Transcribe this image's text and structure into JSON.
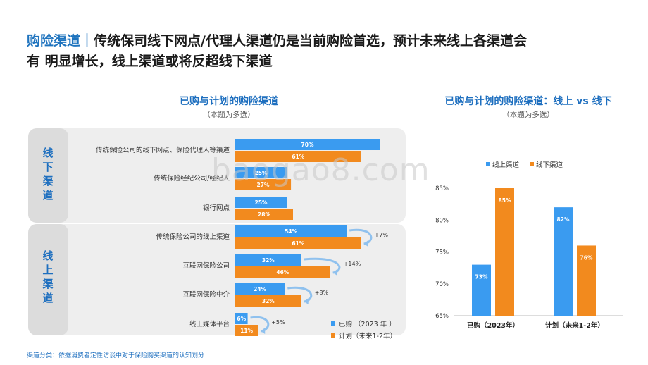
{
  "headline": {
    "keyword": "购险渠道",
    "separator": "｜",
    "line1_rest": "传统保司线下网点/代理人渠道仍是当前购险首选，预计未来线上各渠道会",
    "line2": "有 明显增长，线上渠道或将反超线下渠道"
  },
  "colors": {
    "blue": "#3a9bf0",
    "orange": "#f28a1e",
    "group_label": "#1e6fbf"
  },
  "watermark": "baogao8.com",
  "footnote": "渠道分类：依据消费者定性访谈中对于保险购买渠道的认知划分",
  "chart_data": [
    {
      "type": "bar",
      "orientation": "horizontal",
      "title": "已购与计划的购险渠道",
      "subtitle": "（本题为多选）",
      "groups": [
        {
          "label": "线\n下\n渠\n道",
          "chars": [
            "线",
            "下",
            "渠",
            "道"
          ],
          "categories": [
            0,
            1,
            2
          ]
        },
        {
          "label": "线\n上\n渠\n道",
          "chars": [
            "线",
            "上",
            "渠",
            "道"
          ],
          "categories": [
            3,
            4,
            5,
            6
          ]
        }
      ],
      "categories": [
        "传统保险公司的线下网点、保险代理人等渠道",
        "传统保险经纪公司/经纪人",
        "银行网点",
        "传统保险公司的线上渠道",
        "互联网保险公司",
        "互联网保险中介",
        "线上媒体平台"
      ],
      "series": [
        {
          "name": "已购 （2023 年 ）",
          "values": [
            70,
            25,
            25,
            54,
            32,
            24,
            6
          ],
          "labels": [
            "70%",
            "25%",
            "25%",
            "54%",
            "32%",
            "24%",
            "6%"
          ]
        },
        {
          "name": "计划（未来1-2年）",
          "values": [
            61,
            27,
            28,
            61,
            46,
            32,
            11
          ],
          "labels": [
            "61%",
            "27%",
            "28%",
            "61%",
            "46%",
            "32%",
            "11%"
          ]
        }
      ],
      "annotations": [
        {
          "category": 3,
          "text": "+7%"
        },
        {
          "category": 4,
          "text": "+14%"
        },
        {
          "category": 5,
          "text": "+8%"
        },
        {
          "category": 6,
          "text": "+5%"
        }
      ],
      "xlim": [
        0,
        100
      ]
    },
    {
      "type": "bar",
      "title": "已购与计划的购险渠道：线上 vs 线下",
      "subtitle": "（本题为多选）",
      "categories": [
        "已购（2023年）",
        "计划（未来1-2年）"
      ],
      "series": [
        {
          "name": "线上渠道",
          "values": [
            73,
            82
          ],
          "labels": [
            "73%",
            "82%"
          ]
        },
        {
          "name": "线下渠道",
          "values": [
            85,
            76
          ],
          "labels": [
            "85%",
            "76%"
          ]
        }
      ],
      "yticks": [
        "65%",
        "70%",
        "75%",
        "80%",
        "85%"
      ],
      "ylim": [
        65,
        85
      ],
      "legend": "top"
    }
  ]
}
